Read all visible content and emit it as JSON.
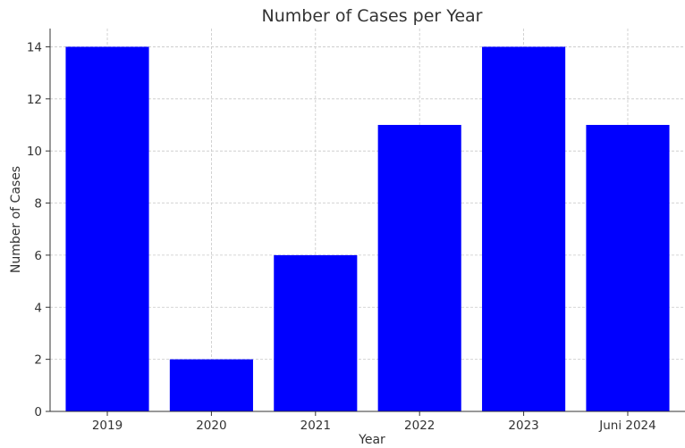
{
  "chart_data": {
    "type": "bar",
    "title": "Number of Cases per Year",
    "xlabel": "Year",
    "ylabel": "Number of Cases",
    "categories": [
      "2019",
      "2020",
      "2021",
      "2022",
      "2023",
      "Juni 2024"
    ],
    "values": [
      14,
      2,
      6,
      11,
      14,
      11
    ],
    "ylim": [
      0,
      14.7
    ],
    "yticks": [
      "0",
      "2",
      "4",
      "6",
      "8",
      "10",
      "12",
      "14"
    ],
    "grid": true,
    "bar_color": "#0000ff"
  }
}
